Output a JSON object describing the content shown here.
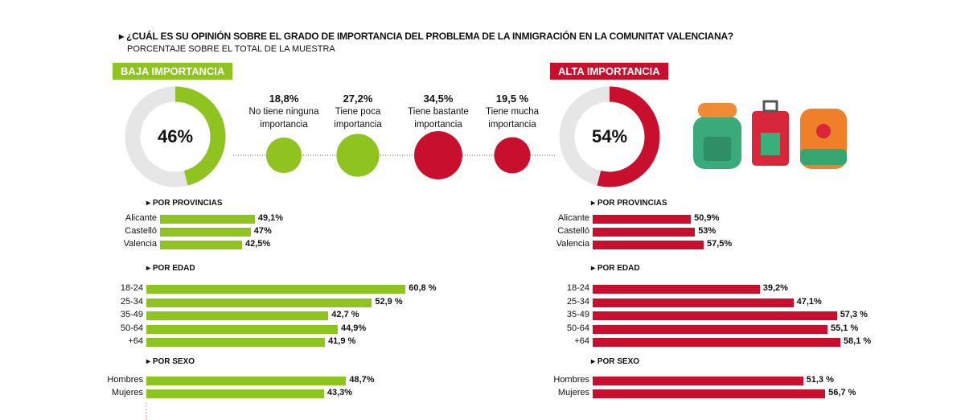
{
  "title": "¿CUÁL ES SU OPINIÓN SOBRE EL GRADO DE IMPORTANCIA DEL PROBLEMA DE LA INMIGRACIÓN EN LA COMUNITAT VALENCIANA?",
  "subtitle": "PORCENTAJE SOBRE EL TOTAL DE LA MUESTRA",
  "colors": {
    "low": "#8fc31f",
    "high": "#c8102e",
    "track": "#e6e6e6"
  },
  "icons": [
    "backpack-green-icon",
    "suitcase-red-icon",
    "backpack-orange-icon"
  ],
  "chart_data": [
    {
      "type": "pie",
      "title": "BAJA IMPORTANCIA",
      "label": "46%",
      "value": 46
    },
    {
      "type": "pie",
      "title": "ALTA IMPORTANCIA",
      "label": "54%",
      "value": 54
    },
    {
      "type": "bubble",
      "options": [
        {
          "pct": "18,8%",
          "value": 18.8,
          "label1": "No tiene ninguna",
          "label2": "importancia",
          "group": "low"
        },
        {
          "pct": "27,2%",
          "value": 27.2,
          "label1": "Tiene poca",
          "label2": "importancia",
          "group": "low"
        },
        {
          "pct": "34,5%",
          "value": 34.5,
          "label1": "Tiene bastante",
          "label2": "importancia",
          "group": "high"
        },
        {
          "pct": "19,5 %",
          "value": 19.5,
          "label1": "Tiene mucha",
          "label2": "importancia",
          "group": "high"
        }
      ]
    },
    {
      "type": "bar",
      "side": "low",
      "groups": [
        {
          "title": "POR PROVINCIAS",
          "rows": [
            {
              "cat": "Alicante",
              "value": 49.1,
              "label": "49,1%"
            },
            {
              "cat": "Castelló",
              "value": 47,
              "label": "47%"
            },
            {
              "cat": "Valencia",
              "value": 42.5,
              "label": "42,5%"
            }
          ]
        },
        {
          "title": "POR EDAD",
          "rows": [
            {
              "cat": "18-24",
              "value": 60.8,
              "label": "60,8 %"
            },
            {
              "cat": "25-34",
              "value": 52.9,
              "label": "52,9 %"
            },
            {
              "cat": "35-49",
              "value": 42.7,
              "label": "42,7 %"
            },
            {
              "cat": "50-64",
              "value": 44.9,
              "label": "44,9%"
            },
            {
              "cat": "+64",
              "value": 41.9,
              "label": "41,9 %"
            }
          ]
        },
        {
          "title": "POR SEXO",
          "rows": [
            {
              "cat": "Hombres",
              "value": 48.7,
              "label": "48,7%"
            },
            {
              "cat": "Mujeres",
              "value": 43.3,
              "label": "43,3%"
            }
          ]
        }
      ]
    },
    {
      "type": "bar",
      "side": "high",
      "groups": [
        {
          "title": "POR PROVINCIAS",
          "rows": [
            {
              "cat": "Alicante",
              "value": 50.9,
              "label": "50,9%"
            },
            {
              "cat": "Castelló",
              "value": 53,
              "label": "53%"
            },
            {
              "cat": "Valencia",
              "value": 57.5,
              "label": "57,5%"
            }
          ]
        },
        {
          "title": "POR EDAD",
          "rows": [
            {
              "cat": "18-24",
              "value": 39.2,
              "label": "39,2%"
            },
            {
              "cat": "25-34",
              "value": 47.1,
              "label": "47,1%"
            },
            {
              "cat": "35-49",
              "value": 57.3,
              "label": "57,3 %"
            },
            {
              "cat": "50-64",
              "value": 55.1,
              "label": "55,1 %"
            },
            {
              "cat": "+64",
              "value": 58.1,
              "label": "58,1 %"
            }
          ]
        },
        {
          "title": "POR SEXO",
          "rows": [
            {
              "cat": "Hombres",
              "value": 51.3,
              "label": "51,3 %"
            },
            {
              "cat": "Mujeres",
              "value": 56.7,
              "label": "56,7 %"
            }
          ]
        }
      ]
    }
  ]
}
